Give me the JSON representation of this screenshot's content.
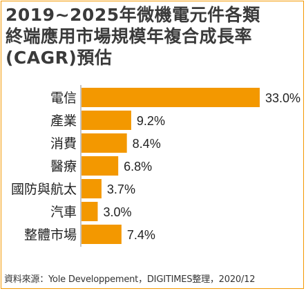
{
  "chart_title_lines": [
    "2019~2025年微機電元件各類",
    "終端應用市場規模年複合成長率",
    "(CAGR)預估"
  ],
  "colors": {
    "bar": "#f39800",
    "border": "#f39800",
    "text": "#222222"
  },
  "source": "資料來源：Yole Developpement，DIGITIMES整理，2020/12",
  "chart_data": {
    "type": "bar",
    "orientation": "horizontal",
    "title": "2019~2025年微機電元件各類終端應用市場規模年複合成長率(CAGR)預估",
    "categories": [
      "電信",
      "產業",
      "消費",
      "醫療",
      "國防與航太",
      "汽車",
      "整體市場"
    ],
    "values": [
      33.0,
      9.2,
      8.4,
      6.8,
      3.7,
      3.0,
      7.4
    ],
    "value_labels": [
      "33.0%",
      "9.2%",
      "8.4%",
      "6.8%",
      "3.7%",
      "3.0%",
      "7.4%"
    ],
    "unit": "%",
    "xlim": [
      0,
      33.0
    ],
    "grid": false,
    "legend": "none"
  }
}
